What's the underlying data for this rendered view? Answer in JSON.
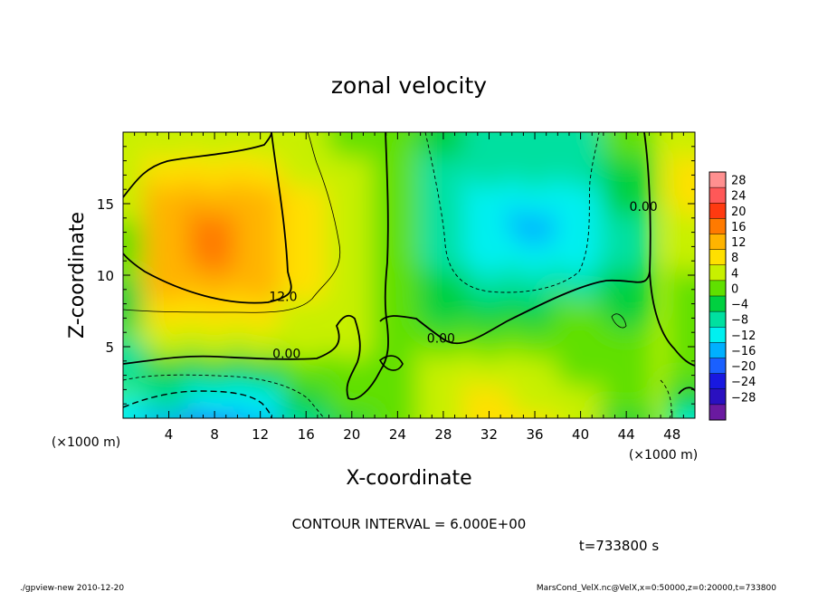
{
  "chart_data": {
    "type": "heatmap",
    "title": "zonal velocity",
    "xlabel": "X-coordinate",
    "ylabel": "Z-coordinate",
    "x_unit_left": "(×1000 m)",
    "x_unit_right": "(×1000 m)",
    "xlim": [
      0,
      50
    ],
    "ylim": [
      0,
      20
    ],
    "x_ticks": [
      4,
      8,
      12,
      16,
      20,
      24,
      28,
      32,
      36,
      40,
      44,
      48
    ],
    "y_ticks": [
      5,
      10,
      15
    ],
    "contour_interval_text": "CONTOUR INTERVAL = 6.000E+00",
    "time_text": "t=733800 s",
    "contour_labels": [
      {
        "text": "12.0",
        "x": 14.0,
        "z": 8.2
      },
      {
        "text": "0.00",
        "x": 14.3,
        "z": 4.2
      },
      {
        "text": "0.00",
        "x": 27.8,
        "z": 5.3
      },
      {
        "text": "0.00",
        "x": 45.5,
        "z": 14.5
      }
    ],
    "colorbar": {
      "levels": [
        28,
        24,
        20,
        16,
        12,
        8,
        4,
        0,
        -4,
        -8,
        -12,
        -16,
        -20,
        -24,
        -28
      ],
      "colors": [
        "#ff9090",
        "#ff5858",
        "#ff3a10",
        "#ff7a00",
        "#ffb400",
        "#ffe000",
        "#c8f000",
        "#60e000",
        "#00d040",
        "#00e0a0",
        "#00f0f0",
        "#00b0ff",
        "#1a60ff",
        "#1818e0",
        "#2a10c0",
        "#6a1aa0"
      ]
    },
    "field_samples": [
      [
        0,
        [
          -12,
          -8,
          -4,
          0,
          4,
          4
        ]
      ],
      [
        4,
        [
          -15,
          -8,
          -2,
          4,
          8,
          14,
          15,
          14,
          12,
          8,
          4
        ]
      ],
      [
        8,
        [
          -17,
          -10,
          -4,
          4,
          8,
          14,
          16,
          16,
          14,
          10,
          6
        ]
      ],
      [
        12,
        [
          -16,
          -10,
          -4,
          4,
          8,
          12,
          14,
          14,
          12,
          8,
          6
        ]
      ],
      [
        16,
        [
          -6,
          -2,
          0,
          4,
          6,
          8,
          8,
          8,
          8,
          6,
          6
        ]
      ],
      [
        20,
        [
          -2,
          0,
          2,
          4,
          4,
          4,
          4,
          4,
          4,
          4,
          2
        ]
      ],
      [
        24,
        [
          0,
          2,
          2,
          0,
          0,
          0,
          0,
          0,
          0,
          0,
          0
        ]
      ],
      [
        28,
        [
          4,
          6,
          4,
          0,
          -2,
          -4,
          -6,
          -6,
          -6,
          -6,
          -4
        ]
      ],
      [
        32,
        [
          8,
          8,
          6,
          2,
          -4,
          -8,
          -10,
          -10,
          -10,
          -8,
          -6
        ]
      ],
      [
        36,
        [
          8,
          6,
          4,
          2,
          -4,
          -8,
          -12,
          -14,
          -12,
          -8,
          -6
        ]
      ],
      [
        40,
        [
          4,
          4,
          2,
          2,
          0,
          -6,
          -10,
          -10,
          -10,
          -8,
          -6
        ]
      ],
      [
        44,
        [
          -2,
          2,
          2,
          0,
          -2,
          -4,
          -6,
          -6,
          -4,
          -2,
          0
        ]
      ],
      [
        50,
        [
          -10,
          -4,
          0,
          2,
          2,
          2,
          4,
          6,
          8,
          8,
          6
        ]
      ]
    ]
  },
  "footer": {
    "left": "./gpview-new  2010-12-20",
    "right": "MarsCond_VelX.nc@VelX,x=0:50000,z=0:20000,t=733800"
  }
}
